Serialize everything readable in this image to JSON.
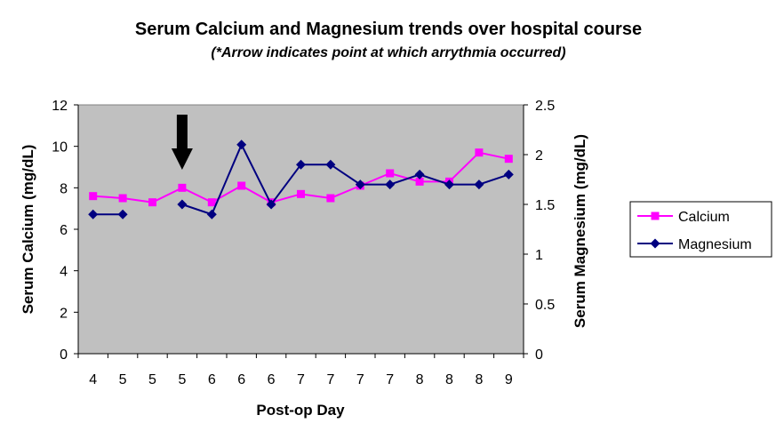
{
  "chart_data": {
    "type": "line",
    "title": "Serum Calcium and Magnesium trends over hospital course",
    "subtitle": "(*Arrow indicates point at which arrythmia occurred)",
    "xlabel": "Post-op Day",
    "ylabel_left": "Serum Calcium (mg/dL)",
    "ylabel_right": "Serum Magnesium (mg/dL)",
    "categories": [
      "4",
      "5",
      "5",
      "5",
      "6",
      "6",
      "6",
      "7",
      "7",
      "7",
      "7",
      "8",
      "8",
      "8",
      "9"
    ],
    "y_left": {
      "range": [
        0,
        12
      ],
      "ticks": [
        "0",
        "2",
        "4",
        "6",
        "8",
        "10",
        "12"
      ]
    },
    "y_right": {
      "range": [
        0,
        2.5
      ],
      "ticks": [
        "0",
        "0.5",
        "1",
        "1.5",
        "2",
        "2.5"
      ]
    },
    "series": [
      {
        "name": "Calcium",
        "axis": "left",
        "color": "#ff00ff",
        "marker": "square",
        "values": [
          7.6,
          7.5,
          7.3,
          8.0,
          7.3,
          8.1,
          7.3,
          7.7,
          7.5,
          8.1,
          8.7,
          8.3,
          8.3,
          9.7,
          9.4
        ]
      },
      {
        "name": "Magnesium",
        "axis": "right",
        "color": "#000080",
        "marker": "diamond",
        "values": [
          1.4,
          1.4,
          null,
          1.5,
          1.4,
          2.1,
          1.5,
          1.9,
          1.9,
          1.7,
          1.7,
          1.8,
          1.7,
          1.7,
          1.8
        ]
      }
    ],
    "annotation": {
      "type": "arrow",
      "category_index": 3,
      "direction": "down",
      "color": "#000000"
    },
    "plot_background": "#c0c0c0",
    "grid": false,
    "legend_position": "right"
  }
}
